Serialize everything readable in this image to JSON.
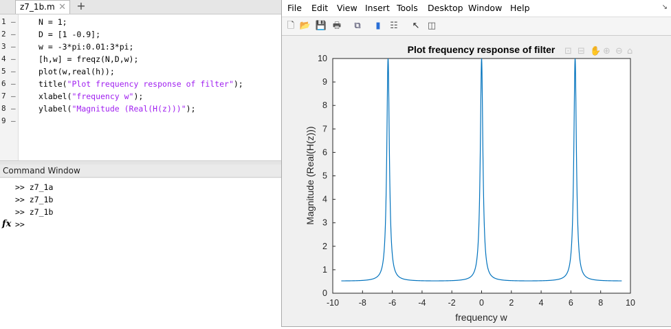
{
  "editor": {
    "tab_label": "z7_1b.m",
    "line_numbers": [
      "1",
      "2",
      "3",
      "4",
      "5",
      "6",
      "7",
      "8",
      "9"
    ],
    "lines": [
      {
        "pre": "N = 1;",
        "str": "",
        "post": ""
      },
      {
        "pre": "D = [1 -0.9];",
        "str": "",
        "post": ""
      },
      {
        "pre": "w = -3*pi:0.01:3*pi;",
        "str": "",
        "post": ""
      },
      {
        "pre": "[h,w] = freqz(N,D,w);",
        "str": "",
        "post": ""
      },
      {
        "pre": "plot(w,real(h));",
        "str": "",
        "post": ""
      },
      {
        "pre": "title(",
        "str": "\"Plot frequency response of filter\"",
        "post": ");"
      },
      {
        "pre": "xlabel(",
        "str": "\"frequency w\"",
        "post": ");"
      },
      {
        "pre": "ylabel(",
        "str": "\"Magnitude (Real(H(z)))\"",
        "post": ");"
      },
      {
        "pre": "",
        "str": "",
        "post": ""
      }
    ]
  },
  "command_window": {
    "title": "Command Window",
    "history": [
      ">> z7_1a",
      ">> z7_1b",
      ">> z7_1b"
    ],
    "prompt": ">>"
  },
  "figure": {
    "menu": [
      "File",
      "Edit",
      "View",
      "Insert",
      "Tools",
      "Desktop",
      "Window",
      "Help"
    ],
    "toolbar_icons": [
      "new-file-icon",
      "open-folder-icon",
      "save-icon",
      "print-icon",
      "link-plot-icon",
      "colorbar-icon",
      "legend-icon",
      "pointer-icon",
      "property-editor-icon"
    ],
    "axes_toolbar_icons": [
      "export-icon",
      "brush-icon",
      "pan-icon",
      "zoom-in-icon",
      "zoom-out-icon",
      "home-icon"
    ]
  },
  "chart_data": {
    "type": "line",
    "title": "Plot frequency response of filter",
    "xlabel": "frequency w",
    "ylabel": "Magnitude (Real(H(z)))",
    "xlim": [
      -10,
      10
    ],
    "ylim": [
      0,
      10
    ],
    "xticks": [
      -10,
      -8,
      -6,
      -4,
      -2,
      0,
      2,
      4,
      6,
      8,
      10
    ],
    "yticks": [
      0,
      1,
      2,
      3,
      4,
      5,
      6,
      7,
      8,
      9,
      10
    ],
    "grid": false,
    "series": [
      {
        "color": "#0072bd",
        "formula": "real(1/(1-0.9*exp(-1j*w)))",
        "x_range": [
          -9.4248,
          9.4248
        ],
        "x_step": 0.01
      }
    ]
  }
}
